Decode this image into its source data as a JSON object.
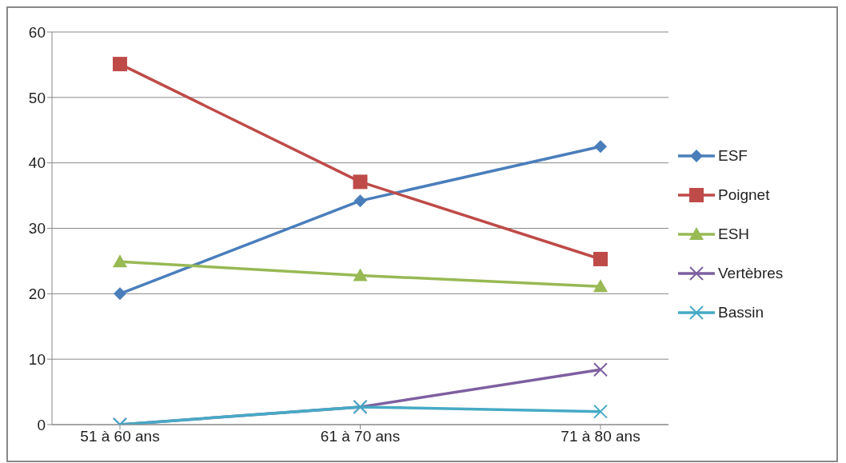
{
  "chart_data": {
    "type": "line",
    "categories": [
      "51 à 60 ans",
      "61 à 70 ans",
      "71 à 80 ans"
    ],
    "series": [
      {
        "name": "ESF",
        "color": "#4a7ebb",
        "marker": "diamond",
        "values": [
          20,
          34.2,
          42.5
        ]
      },
      {
        "name": "Poignet",
        "color": "#be4b48",
        "marker": "square",
        "values": [
          55.1,
          37.1,
          25.3
        ]
      },
      {
        "name": "ESH",
        "color": "#98b954",
        "marker": "triangle",
        "values": [
          24.9,
          22.8,
          21.1
        ]
      },
      {
        "name": "Vertèbres",
        "color": "#7d60a0",
        "marker": "cross",
        "values": [
          0,
          2.7,
          8.4
        ]
      },
      {
        "name": "Bassin",
        "color": "#46aac5",
        "marker": "cross",
        "values": [
          0,
          2.7,
          2
        ]
      }
    ],
    "ylim": [
      0,
      60
    ],
    "yticks": [
      0,
      10,
      20,
      30,
      40,
      50,
      60
    ],
    "grid": "y",
    "legend": "right",
    "line_style": "solid"
  }
}
